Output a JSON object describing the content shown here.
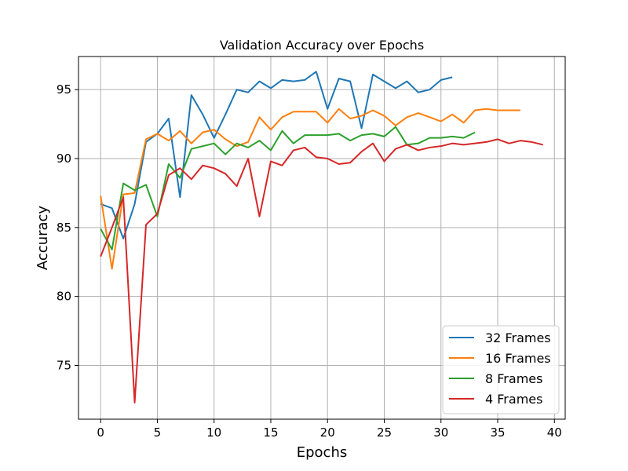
{
  "chart_data": {
    "type": "line",
    "title": "Validation Accuracy over Epochs",
    "xlabel": "Epochs",
    "ylabel": "Accuracy",
    "xlim": [
      -1.95,
      40.95
    ],
    "ylim": [
      71.1,
      97.4
    ],
    "xticks": [
      0,
      5,
      10,
      15,
      20,
      25,
      30,
      35,
      40
    ],
    "yticks": [
      75,
      80,
      85,
      90,
      95
    ],
    "grid": true,
    "legend_position": "lower-right",
    "series": [
      {
        "name": "32 Frames",
        "color": "#1f77b4",
        "x": [
          0,
          1,
          2,
          3,
          4,
          5,
          6,
          7,
          8,
          9,
          10,
          11,
          12,
          13,
          14,
          15,
          16,
          17,
          18,
          19,
          20,
          21,
          22,
          23,
          24,
          25,
          26,
          27,
          28,
          29,
          30,
          31
        ],
        "values": [
          86.7,
          86.4,
          84.2,
          86.7,
          91.2,
          91.8,
          92.9,
          87.2,
          94.6,
          93.2,
          91.5,
          93.2,
          95.0,
          94.8,
          95.6,
          95.1,
          95.7,
          95.6,
          95.7,
          96.3,
          93.6,
          95.8,
          95.6,
          92.2,
          96.1,
          95.6,
          95.1,
          95.6,
          94.8,
          95.0,
          95.7,
          95.9
        ]
      },
      {
        "name": "16 Frames",
        "color": "#ff7f0e",
        "x": [
          0,
          1,
          2,
          3,
          4,
          5,
          6,
          7,
          8,
          9,
          10,
          11,
          12,
          13,
          14,
          15,
          16,
          17,
          18,
          19,
          20,
          21,
          22,
          23,
          24,
          25,
          26,
          27,
          28,
          29,
          30,
          31,
          32,
          33,
          34,
          35,
          36,
          37
        ],
        "values": [
          87.3,
          82.0,
          87.4,
          87.5,
          91.4,
          91.8,
          91.3,
          92.0,
          91.1,
          91.9,
          92.1,
          91.4,
          90.9,
          91.2,
          93.0,
          92.1,
          93.0,
          93.4,
          93.4,
          93.4,
          92.6,
          93.6,
          92.9,
          93.1,
          93.5,
          93.1,
          92.4,
          93.0,
          93.3,
          93.0,
          92.7,
          93.2,
          92.6,
          93.5,
          93.6,
          93.5,
          93.5,
          93.5
        ]
      },
      {
        "name": "8 Frames",
        "color": "#2ca02c",
        "x": [
          0,
          1,
          2,
          3,
          4,
          5,
          6,
          7,
          8,
          9,
          10,
          11,
          12,
          13,
          14,
          15,
          16,
          17,
          18,
          19,
          20,
          21,
          22,
          23,
          24,
          25,
          26,
          27,
          28,
          29,
          30,
          31,
          32,
          33
        ],
        "values": [
          84.9,
          83.4,
          88.2,
          87.7,
          88.1,
          85.8,
          89.6,
          88.6,
          90.7,
          90.9,
          91.1,
          90.3,
          91.1,
          90.8,
          91.3,
          90.6,
          92.0,
          91.1,
          91.7,
          91.7,
          91.7,
          91.8,
          91.3,
          91.7,
          91.8,
          91.6,
          92.3,
          91.0,
          91.1,
          91.5,
          91.5,
          91.6,
          91.5,
          91.9
        ]
      },
      {
        "name": "4 Frames",
        "color": "#d62728",
        "x": [
          0,
          1,
          2,
          3,
          4,
          5,
          6,
          7,
          8,
          9,
          10,
          11,
          12,
          13,
          14,
          15,
          16,
          17,
          18,
          19,
          20,
          21,
          22,
          23,
          24,
          25,
          26,
          27,
          28,
          29,
          30,
          31,
          32,
          33,
          34,
          35,
          36,
          37,
          38,
          39
        ],
        "values": [
          82.9,
          85.0,
          87.2,
          72.3,
          85.2,
          86.0,
          88.8,
          89.3,
          88.5,
          89.5,
          89.3,
          88.9,
          88.0,
          90.0,
          85.8,
          89.8,
          89.5,
          90.6,
          90.8,
          90.1,
          90.0,
          89.6,
          89.7,
          90.5,
          91.1,
          89.8,
          90.7,
          91.0,
          90.6,
          90.8,
          90.9,
          91.1,
          91.0,
          91.1,
          91.2,
          91.4,
          91.1,
          91.3,
          91.2,
          91.0
        ]
      }
    ]
  }
}
